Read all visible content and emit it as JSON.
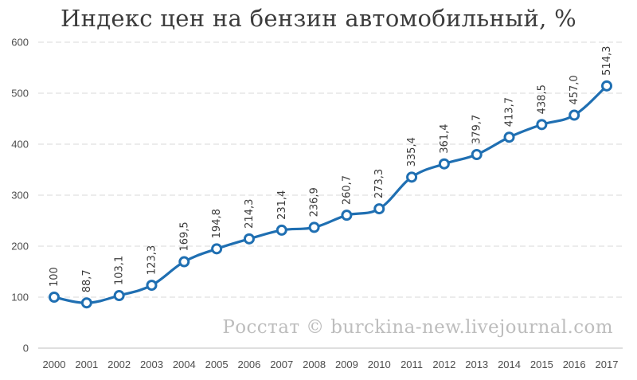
{
  "chart_data": {
    "type": "line",
    "title": "Индекс цен на бензин автомобильный, %",
    "xlabel": "",
    "ylabel": "",
    "ylim": [
      0,
      600
    ],
    "y_ticks": [
      0,
      100,
      200,
      300,
      400,
      500,
      600
    ],
    "grid": "horizontal dashed",
    "categories": [
      "2000",
      "2001",
      "2002",
      "2003",
      "2004",
      "2005",
      "2006",
      "2007",
      "2008",
      "2009",
      "2010",
      "2011",
      "2012",
      "2013",
      "2014",
      "2015",
      "2016",
      "2017"
    ],
    "values": [
      100,
      88.7,
      103.1,
      123.3,
      169.5,
      194.8,
      214.3,
      231.4,
      236.9,
      260.7,
      273.3,
      335.4,
      361.4,
      379.7,
      413.7,
      438.5,
      457.0,
      514.3
    ],
    "data_labels": [
      "100",
      "88,7",
      "103,1",
      "123,3",
      "169,5",
      "194,8",
      "214,3",
      "231,4",
      "236,9",
      "260,7",
      "273,3",
      "335,4",
      "361,4",
      "379,7",
      "413,7",
      "438,5",
      "457,0",
      "514,3"
    ],
    "watermark": "Росстат © burckina-new.livejournal.com",
    "colors": {
      "line": "#1f6fb2",
      "marker_fill": "#ffffff",
      "grid": "#d9d9d9"
    }
  }
}
